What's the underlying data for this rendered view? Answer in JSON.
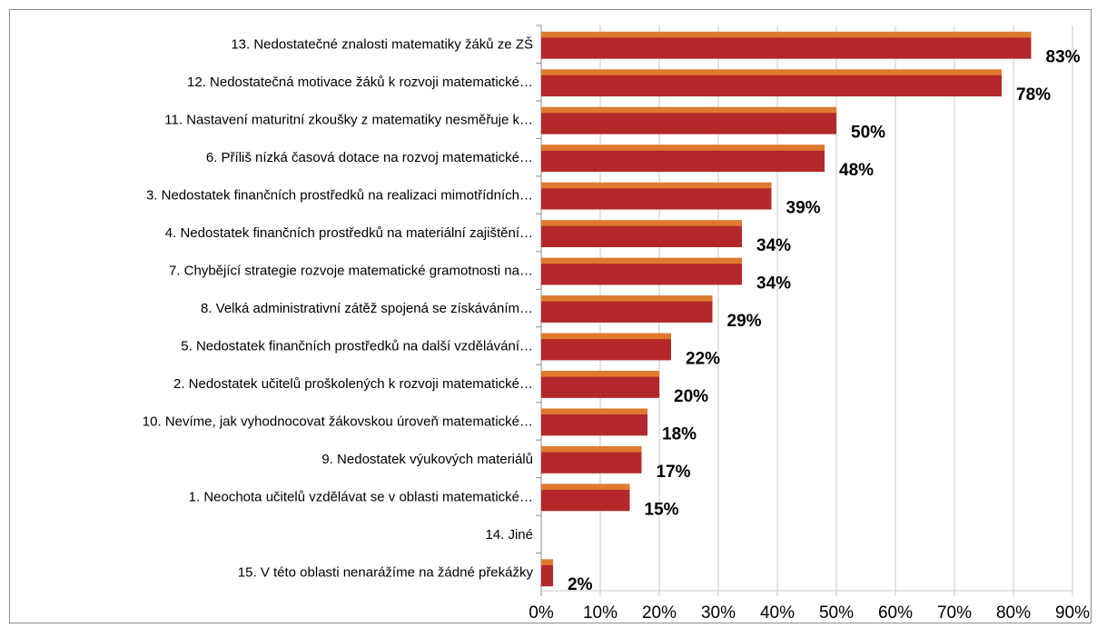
{
  "chart_data": {
    "type": "bar",
    "orientation": "horizontal",
    "title": "",
    "xlabel": "",
    "ylabel": "",
    "xlim": [
      0,
      90
    ],
    "x_ticks": [
      "0%",
      "10%",
      "20%",
      "30%",
      "40%",
      "50%",
      "60%",
      "70%",
      "80%",
      "90%"
    ],
    "grid": true,
    "colors": {
      "bar_front": "#b3282a",
      "bar_back": "#e07a2e",
      "grid": "#c8c8c8",
      "axis": "#8c8c8c"
    },
    "categories": [
      "13. Nedostatečné znalosti matematiky žáků ze ZŠ",
      "12. Nedostatečná motivace žáků k rozvoji matematické…",
      "11. Nastavení maturitní zkoušky z matematiky nesměřuje k…",
      "6. Příliš nízká časová dotace na rozvoj matematické…",
      "3. Nedostatek finančních prostředků na realizaci mimotřídních…",
      "4. Nedostatek finančních prostředků na materiální zajištění…",
      "7. Chybějící strategie rozvoje matematické gramotnosti na…",
      "8. Velká administrativní zátěž spojená se získáváním…",
      "5. Nedostatek finančních prostředků na další vzdělávání…",
      "2. Nedostatek učitelů proškolených k rozvoji matematické…",
      "10. Nevíme, jak vyhodnocovat žákovskou úroveň matematické…",
      "9. Nedostatek výukových materiálů",
      "1. Neochota učitelů vzdělávat se v oblasti matematické…",
      "14. Jiné",
      "15. V této oblasti nenarážíme na žádné překážky"
    ],
    "values": [
      83,
      78,
      50,
      48,
      39,
      34,
      34,
      29,
      22,
      20,
      18,
      17,
      15,
      null,
      2
    ],
    "data_labels": [
      "83%",
      "78%",
      "50%",
      "48%",
      "39%",
      "34%",
      "34%",
      "29%",
      "22%",
      "20%",
      "18%",
      "17%",
      "15%",
      "",
      "2%"
    ]
  }
}
